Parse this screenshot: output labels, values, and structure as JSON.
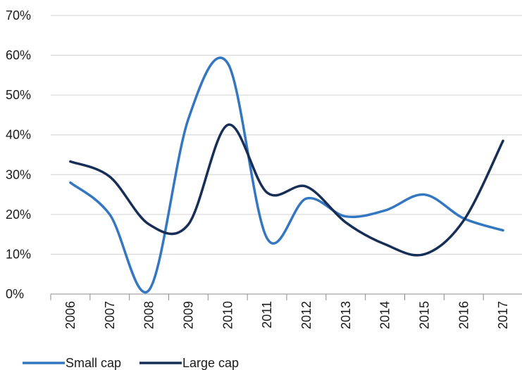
{
  "chart_data": {
    "type": "line",
    "title": "",
    "xlabel": "",
    "ylabel": "",
    "categories": [
      "2006",
      "2007",
      "2008",
      "2009",
      "2010",
      "2011",
      "2012",
      "2013",
      "2014",
      "2015",
      "2016",
      "2017"
    ],
    "ylim": [
      0,
      70
    ],
    "yticks": [
      "0%",
      "10%",
      "20%",
      "30%",
      "40%",
      "50%",
      "60%",
      "70%"
    ],
    "grid": true,
    "smooth": true,
    "legend_position": "bottom-left",
    "series": [
      {
        "name": "Small cap",
        "color": "#3477c0",
        "values": [
          28,
          20,
          1,
          44,
          58,
          14,
          24,
          19.5,
          21,
          25,
          19,
          16
        ]
      },
      {
        "name": "Large cap",
        "color": "#172e57",
        "values": [
          33.3,
          29.5,
          17.5,
          17.5,
          42.5,
          25.5,
          27,
          18,
          12.5,
          10,
          18.5,
          38.5
        ]
      }
    ]
  }
}
